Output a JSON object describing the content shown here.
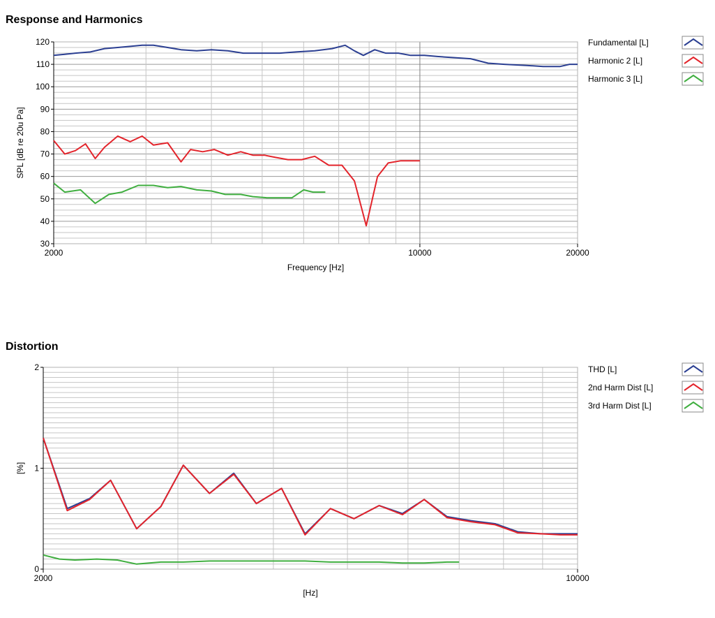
{
  "charts": [
    {
      "title": "Response and Harmonics",
      "xlabel": "Frequency [Hz]",
      "ylabel": "SPL [dB re 20u Pa]"
    },
    {
      "title": "Distortion",
      "xlabel": "[Hz]",
      "ylabel": "[%]"
    }
  ],
  "colors": {
    "blue": "#2b3f92",
    "red": "#e3242b",
    "green": "#3fae3f",
    "grid_major": "#9a9a9a",
    "grid_minor": "#c6c6c6"
  },
  "chart_data": [
    {
      "type": "line",
      "title": "Response and Harmonics",
      "xlabel": "Frequency [Hz]",
      "ylabel": "SPL [dB re 20u Pa]",
      "xscale": "log",
      "xlim": [
        2000,
        20000
      ],
      "ylim": [
        30,
        120
      ],
      "xticks": [
        2000,
        10000,
        20000
      ],
      "yticks": [
        30,
        40,
        50,
        60,
        70,
        80,
        90,
        100,
        110,
        120
      ],
      "grid": true,
      "legend_position": "right",
      "series": [
        {
          "name": "Fundamental [L]",
          "color": "#2b3f92",
          "x": [
            2000,
            2100,
            2200,
            2350,
            2500,
            2650,
            2800,
            2950,
            3100,
            3300,
            3500,
            3750,
            4000,
            4300,
            4600,
            5000,
            5400,
            5800,
            6300,
            6800,
            7200,
            7500,
            7800,
            8200,
            8600,
            9100,
            9600,
            10200,
            10800,
            11600,
            12500,
            13500,
            14500,
            16000,
            17200,
            18500,
            19300,
            20000
          ],
          "y": [
            114,
            114.5,
            115,
            115.5,
            117,
            117.5,
            118,
            118.5,
            118.5,
            117.5,
            116.5,
            116,
            116.5,
            116,
            115,
            115,
            115,
            115.5,
            116,
            117,
            118.5,
            116,
            114,
            116.5,
            115,
            115,
            114,
            114,
            113.5,
            113,
            112.5,
            110.5,
            110,
            109.5,
            109,
            109,
            110,
            110
          ]
        },
        {
          "name": "Harmonic 2 [L]",
          "color": "#e3242b",
          "x": [
            2000,
            2100,
            2200,
            2300,
            2400,
            2500,
            2650,
            2800,
            2950,
            3100,
            3300,
            3500,
            3650,
            3850,
            4050,
            4300,
            4550,
            4800,
            5050,
            5300,
            5600,
            5950,
            6300,
            6700,
            7100,
            7500,
            7900,
            8300,
            8700,
            9200,
            9700,
            10000
          ],
          "y": [
            76,
            70,
            71.5,
            74.5,
            68,
            73,
            78,
            75.5,
            78,
            74,
            75,
            66.5,
            72,
            71,
            72,
            69.5,
            71,
            69.5,
            69.5,
            68.5,
            67.5,
            67.5,
            69,
            65,
            65,
            58,
            38,
            60,
            66,
            67,
            67,
            67
          ]
        },
        {
          "name": "Harmonic 3 [L]",
          "color": "#3fae3f",
          "x": [
            2000,
            2100,
            2250,
            2400,
            2550,
            2700,
            2900,
            3100,
            3300,
            3500,
            3750,
            4000,
            4250,
            4550,
            4800,
            5100,
            5400,
            5700,
            6000,
            6250,
            6600
          ],
          "y": [
            57,
            53,
            54,
            48,
            52,
            53,
            56,
            56,
            55,
            55.5,
            54,
            53.5,
            52,
            52,
            51,
            50.5,
            50.5,
            50.5,
            54,
            53,
            53
          ]
        }
      ]
    },
    {
      "type": "line",
      "title": "Distortion",
      "xlabel": "[Hz]",
      "ylabel": "[%]",
      "xscale": "log",
      "xlim": [
        2000,
        10000
      ],
      "ylim": [
        0,
        2
      ],
      "xticks": [
        2000,
        10000
      ],
      "yticks": [
        0,
        1,
        2
      ],
      "grid": true,
      "legend_position": "right",
      "series": [
        {
          "name": "THD [L]",
          "color": "#2b3f92",
          "x": [
            2000,
            2150,
            2300,
            2450,
            2650,
            2850,
            3050,
            3300,
            3550,
            3800,
            4100,
            4400,
            4750,
            5100,
            5500,
            5900,
            6300,
            6750,
            7250,
            7800,
            8350,
            8950,
            9500,
            10000
          ],
          "y": [
            1.3,
            0.6,
            0.7,
            0.88,
            0.4,
            0.62,
            1.03,
            0.75,
            0.95,
            0.65,
            0.8,
            0.35,
            0.6,
            0.5,
            0.63,
            0.55,
            0.69,
            0.52,
            0.48,
            0.45,
            0.37,
            0.35,
            0.35,
            0.35
          ]
        },
        {
          "name": "2nd Harm Dist [L]",
          "color": "#e3242b",
          "x": [
            2000,
            2150,
            2300,
            2450,
            2650,
            2850,
            3050,
            3300,
            3550,
            3800,
            4100,
            4400,
            4750,
            5100,
            5500,
            5900,
            6300,
            6750,
            7250,
            7800,
            8350,
            8950,
            9500,
            10000
          ],
          "y": [
            1.3,
            0.58,
            0.69,
            0.88,
            0.4,
            0.62,
            1.03,
            0.75,
            0.94,
            0.65,
            0.8,
            0.34,
            0.6,
            0.5,
            0.63,
            0.54,
            0.69,
            0.51,
            0.47,
            0.44,
            0.36,
            0.35,
            0.34,
            0.34
          ]
        },
        {
          "name": "3rd Harm Dist [L]",
          "color": "#3fae3f",
          "x": [
            2000,
            2100,
            2200,
            2350,
            2500,
            2650,
            2850,
            3050,
            3300,
            3550,
            3800,
            4100,
            4400,
            4750,
            5100,
            5500,
            5900,
            6300,
            6750,
            7000
          ],
          "y": [
            0.14,
            0.1,
            0.09,
            0.1,
            0.09,
            0.05,
            0.07,
            0.07,
            0.08,
            0.08,
            0.08,
            0.08,
            0.08,
            0.07,
            0.07,
            0.07,
            0.06,
            0.06,
            0.07,
            0.07
          ]
        }
      ]
    }
  ]
}
